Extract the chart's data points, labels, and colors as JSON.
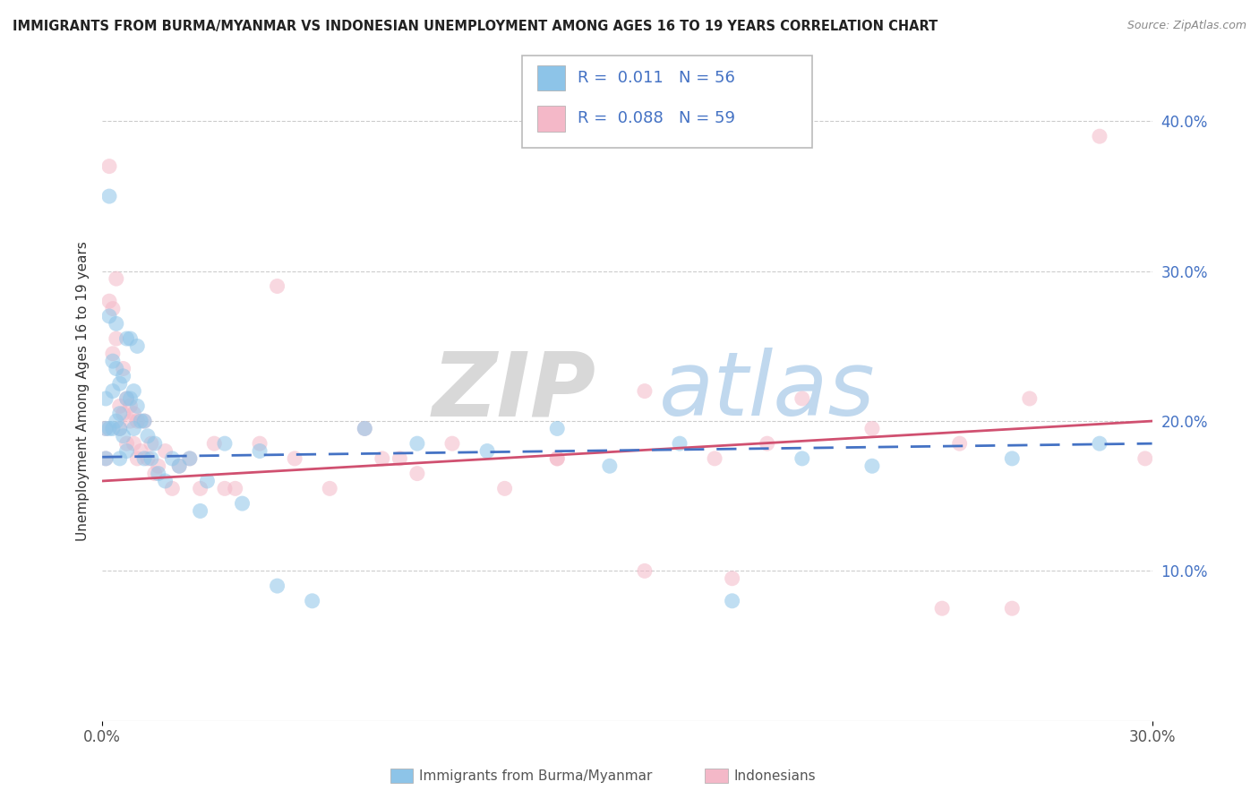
{
  "title": "IMMIGRANTS FROM BURMA/MYANMAR VS INDONESIAN UNEMPLOYMENT AMONG AGES 16 TO 19 YEARS CORRELATION CHART",
  "source": "Source: ZipAtlas.com",
  "ylabel": "Unemployment Among Ages 16 to 19 years",
  "xlim": [
    0.0,
    0.3
  ],
  "ylim": [
    0.0,
    0.44
  ],
  "yticks_right": [
    0.0,
    0.1,
    0.2,
    0.3,
    0.4
  ],
  "ytick_labels_right": [
    "",
    "10.0%",
    "20.0%",
    "30.0%",
    "40.0%"
  ],
  "blue_color": "#8dc4e8",
  "pink_color": "#f4b8c8",
  "blue_line_color": "#4472c4",
  "pink_line_color": "#d05070",
  "legend_R1": "0.011",
  "legend_N1": "56",
  "legend_R2": "0.088",
  "legend_N2": "59",
  "label1": "Immigrants from Burma/Myanmar",
  "label2": "Indonesians",
  "blue_line_x": [
    0.0,
    0.3
  ],
  "blue_line_y": [
    0.176,
    0.185
  ],
  "pink_line_x": [
    0.0,
    0.3
  ],
  "pink_line_y": [
    0.16,
    0.2
  ],
  "blue_scatter_x": [
    0.001,
    0.001,
    0.001,
    0.002,
    0.002,
    0.002,
    0.003,
    0.003,
    0.003,
    0.004,
    0.004,
    0.004,
    0.005,
    0.005,
    0.005,
    0.005,
    0.006,
    0.006,
    0.007,
    0.007,
    0.007,
    0.008,
    0.008,
    0.009,
    0.009,
    0.01,
    0.01,
    0.011,
    0.012,
    0.012,
    0.013,
    0.014,
    0.015,
    0.016,
    0.018,
    0.02,
    0.022,
    0.025,
    0.028,
    0.03,
    0.035,
    0.04,
    0.045,
    0.05,
    0.06,
    0.075,
    0.09,
    0.11,
    0.13,
    0.145,
    0.165,
    0.18,
    0.2,
    0.22,
    0.26,
    0.285
  ],
  "blue_scatter_y": [
    0.175,
    0.195,
    0.215,
    0.35,
    0.27,
    0.195,
    0.24,
    0.22,
    0.195,
    0.265,
    0.235,
    0.2,
    0.225,
    0.205,
    0.195,
    0.175,
    0.23,
    0.19,
    0.255,
    0.215,
    0.18,
    0.255,
    0.215,
    0.22,
    0.195,
    0.25,
    0.21,
    0.2,
    0.175,
    0.2,
    0.19,
    0.175,
    0.185,
    0.165,
    0.16,
    0.175,
    0.17,
    0.175,
    0.14,
    0.16,
    0.185,
    0.145,
    0.18,
    0.09,
    0.08,
    0.195,
    0.185,
    0.18,
    0.195,
    0.17,
    0.185,
    0.08,
    0.175,
    0.17,
    0.175,
    0.185
  ],
  "pink_scatter_x": [
    0.001,
    0.001,
    0.002,
    0.002,
    0.003,
    0.003,
    0.004,
    0.004,
    0.005,
    0.005,
    0.006,
    0.006,
    0.007,
    0.007,
    0.008,
    0.008,
    0.009,
    0.009,
    0.01,
    0.01,
    0.011,
    0.012,
    0.013,
    0.014,
    0.015,
    0.016,
    0.018,
    0.02,
    0.022,
    0.025,
    0.028,
    0.032,
    0.038,
    0.045,
    0.055,
    0.065,
    0.075,
    0.085,
    0.1,
    0.115,
    0.13,
    0.155,
    0.175,
    0.2,
    0.22,
    0.245,
    0.265,
    0.285,
    0.298,
    0.155,
    0.09,
    0.13,
    0.19,
    0.05,
    0.08,
    0.035,
    0.26,
    0.18,
    0.24
  ],
  "pink_scatter_y": [
    0.195,
    0.175,
    0.37,
    0.28,
    0.275,
    0.245,
    0.295,
    0.255,
    0.21,
    0.195,
    0.235,
    0.205,
    0.215,
    0.185,
    0.2,
    0.21,
    0.205,
    0.185,
    0.2,
    0.175,
    0.18,
    0.2,
    0.175,
    0.185,
    0.165,
    0.17,
    0.18,
    0.155,
    0.17,
    0.175,
    0.155,
    0.185,
    0.155,
    0.185,
    0.175,
    0.155,
    0.195,
    0.175,
    0.185,
    0.155,
    0.175,
    0.22,
    0.175,
    0.215,
    0.195,
    0.185,
    0.215,
    0.39,
    0.175,
    0.1,
    0.165,
    0.175,
    0.185,
    0.29,
    0.175,
    0.155,
    0.075,
    0.095,
    0.075
  ]
}
